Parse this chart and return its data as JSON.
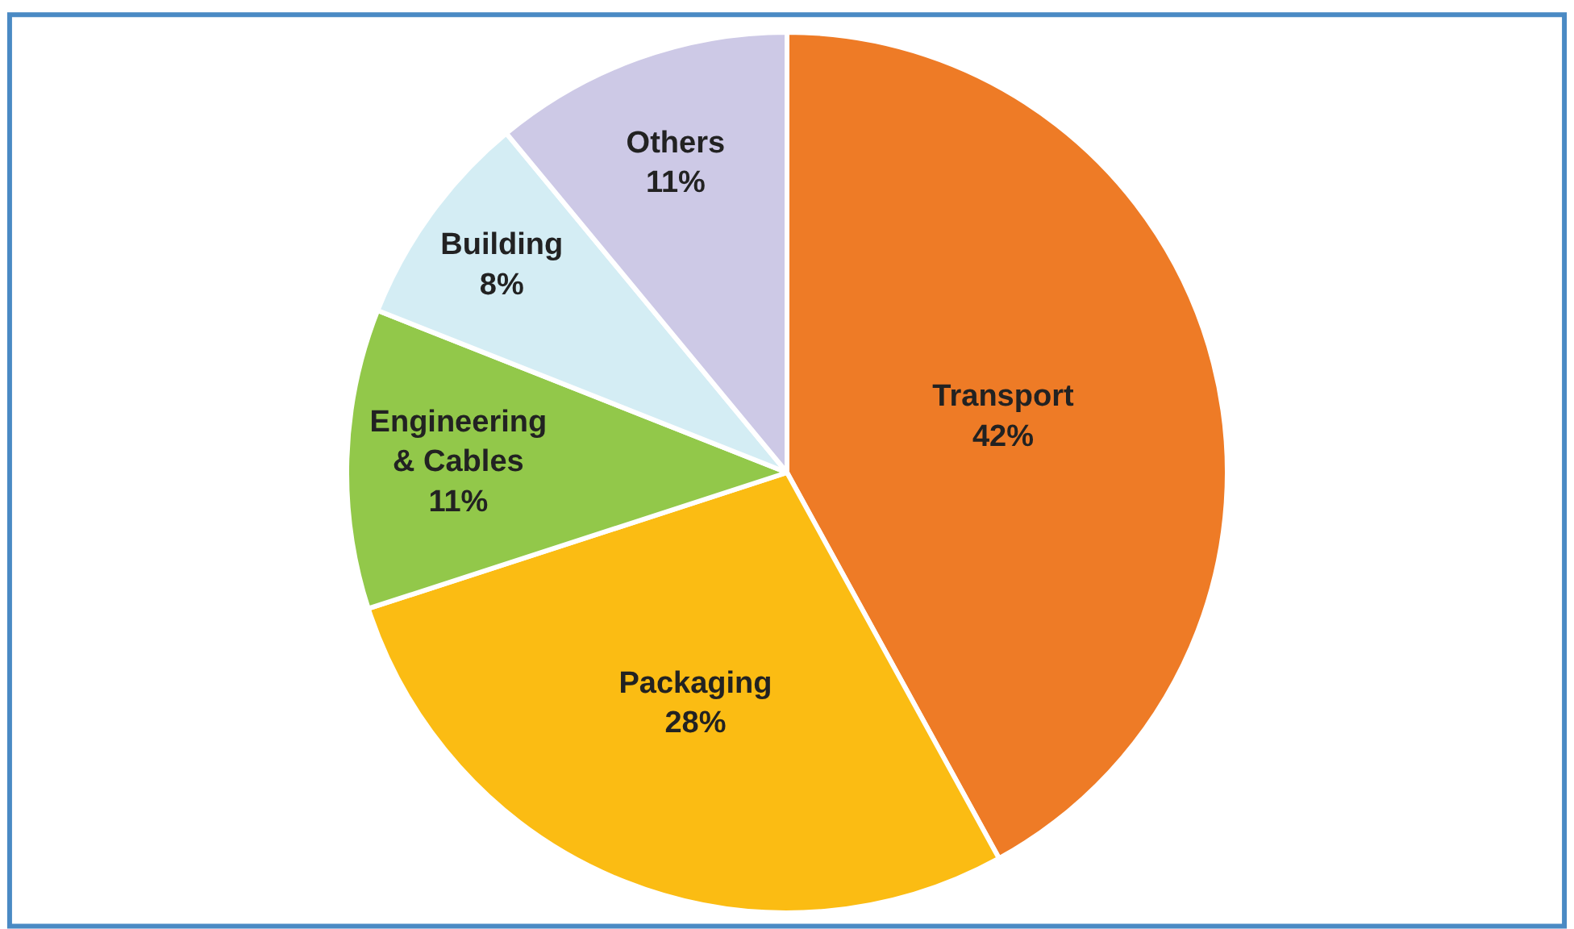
{
  "chart_data": {
    "type": "pie",
    "categories": [
      "Transport",
      "Packaging",
      "Engineering & Cables",
      "Building",
      "Others"
    ],
    "values": [
      42,
      28,
      11,
      8,
      11
    ],
    "value_labels": [
      "42%",
      "28%",
      "11%",
      "8%",
      "11%"
    ],
    "colors": [
      "#ee7b26",
      "#fbbc13",
      "#92c84a",
      "#d4edf4",
      "#cdc9e6"
    ],
    "legend": false
  }
}
